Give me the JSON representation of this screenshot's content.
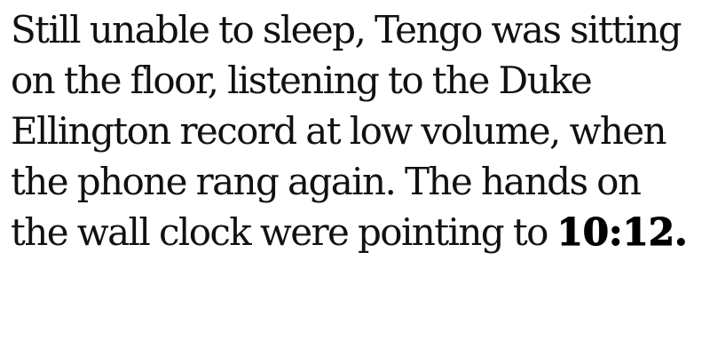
{
  "passage": {
    "lines": [
      "Still unable to sleep, Tengo was sitting",
      "on the floor, listening to the Duke",
      "Ellington record at low volume, when",
      "the phone rang again. The hands on",
      "the wall clock were pointing to"
    ],
    "emphasis": "10:12."
  }
}
